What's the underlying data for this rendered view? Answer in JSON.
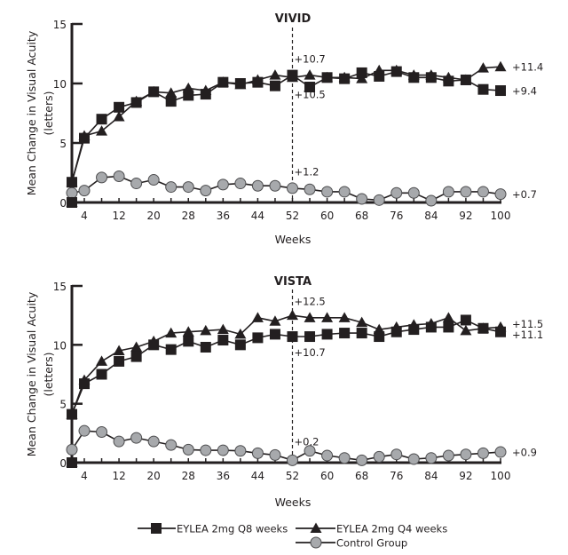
{
  "chart_data": [
    {
      "type": "line",
      "title": "VIVID",
      "xlabel": "Weeks",
      "ylabel": "Mean Change in Visual Acuity",
      "ylabel_sub": "(letters)",
      "ylim": [
        0,
        15
      ],
      "yticks": [
        0,
        5,
        10,
        15
      ],
      "xlim": [
        1,
        100
      ],
      "xticks": [
        4,
        12,
        20,
        28,
        36,
        44,
        52,
        60,
        68,
        76,
        84,
        92,
        100
      ],
      "grid": false,
      "reference_line": {
        "x": 52,
        "style": "dashed"
      },
      "annotations": [
        {
          "text": "+10.7",
          "x": 52,
          "y": 12.1
        },
        {
          "text": "+10.5",
          "x": 52,
          "y": 9.1
        },
        {
          "text": "+1.2",
          "x": 52,
          "y": 2.6
        },
        {
          "text": "+11.4",
          "x": 100,
          "y": 11.4,
          "side": "right"
        },
        {
          "text": "+9.4",
          "x": 100,
          "y": 9.4,
          "side": "right"
        },
        {
          "text": "+0.7",
          "x": 100,
          "y": 0.7,
          "side": "right"
        }
      ],
      "series": [
        {
          "name": "EYLEA 2mg Q8 weeks",
          "marker": "square",
          "x": [
            0,
            1,
            4,
            8,
            12,
            16,
            20,
            24,
            28,
            32,
            36,
            40,
            44,
            48,
            52,
            56,
            60,
            64,
            68,
            72,
            76,
            80,
            84,
            88,
            92,
            96,
            100
          ],
          "y": [
            0,
            1.7,
            5.4,
            7.0,
            8.0,
            8.4,
            9.3,
            8.5,
            9.0,
            9.1,
            10.1,
            10.0,
            10.1,
            9.8,
            10.7,
            9.7,
            10.5,
            10.4,
            10.9,
            10.6,
            11.0,
            10.5,
            10.5,
            10.2,
            10.3,
            9.5,
            9.4
          ]
        },
        {
          "name": "EYLEA 2mg Q4 weeks",
          "marker": "triangle",
          "x": [
            0,
            1,
            4,
            8,
            12,
            16,
            20,
            24,
            28,
            32,
            36,
            40,
            44,
            48,
            52,
            56,
            60,
            64,
            68,
            72,
            76,
            80,
            84,
            88,
            92,
            96,
            100
          ],
          "y": [
            0,
            1.7,
            5.6,
            6.0,
            7.2,
            8.5,
            9.3,
            9.2,
            9.6,
            9.4,
            10.1,
            9.9,
            10.3,
            10.7,
            10.5,
            10.7,
            10.5,
            10.5,
            10.4,
            11.1,
            11.1,
            10.7,
            10.7,
            10.5,
            10.3,
            11.3,
            11.4
          ]
        },
        {
          "name": "Control Group",
          "marker": "circle",
          "x": [
            1,
            4,
            8,
            12,
            16,
            20,
            24,
            28,
            32,
            36,
            40,
            44,
            48,
            52,
            56,
            60,
            64,
            68,
            72,
            76,
            80,
            84,
            88,
            92,
            96,
            100
          ],
          "y": [
            0.8,
            1.0,
            2.1,
            2.2,
            1.6,
            1.9,
            1.3,
            1.3,
            1.0,
            1.5,
            1.6,
            1.4,
            1.4,
            1.2,
            1.1,
            0.9,
            0.9,
            0.3,
            0.2,
            0.8,
            0.8,
            0.15,
            0.9,
            0.9,
            0.9,
            0.7
          ]
        }
      ]
    },
    {
      "type": "line",
      "title": "VISTA",
      "xlabel": "Weeks",
      "ylabel": "Mean Change in Visual Acuity",
      "ylabel_sub": "(letters)",
      "ylim": [
        0,
        15
      ],
      "yticks": [
        0,
        5,
        10,
        15
      ],
      "xlim": [
        1,
        100
      ],
      "xticks": [
        4,
        12,
        20,
        28,
        36,
        44,
        52,
        60,
        68,
        76,
        84,
        92,
        100
      ],
      "grid": false,
      "reference_line": {
        "x": 52,
        "style": "dashed"
      },
      "annotations": [
        {
          "text": "+12.5",
          "x": 52,
          "y": 13.7
        },
        {
          "text": "+10.7",
          "x": 52,
          "y": 9.4
        },
        {
          "text": "+0.2",
          "x": 52,
          "y": 1.8
        },
        {
          "text": "+11.5",
          "x": 100,
          "y": 11.8,
          "side": "right"
        },
        {
          "text": "+11.1",
          "x": 100,
          "y": 10.9,
          "side": "right"
        },
        {
          "text": "+0.9",
          "x": 100,
          "y": 0.9,
          "side": "right"
        }
      ],
      "series": [
        {
          "name": "EYLEA 2mg Q8 weeks",
          "marker": "square",
          "x": [
            0,
            1,
            4,
            8,
            12,
            16,
            20,
            24,
            28,
            32,
            36,
            40,
            44,
            48,
            52,
            56,
            60,
            64,
            68,
            72,
            76,
            80,
            84,
            88,
            92,
            96,
            100
          ],
          "y": [
            0,
            4.1,
            6.7,
            7.5,
            8.6,
            9.0,
            10.0,
            9.6,
            10.3,
            9.8,
            10.4,
            10.0,
            10.6,
            10.9,
            10.7,
            10.7,
            10.9,
            11.0,
            11.0,
            10.7,
            11.1,
            11.3,
            11.5,
            11.5,
            12.1,
            11.4,
            11.1
          ]
        },
        {
          "name": "EYLEA 2mg Q4 weeks",
          "marker": "triangle",
          "x": [
            0,
            1,
            4,
            8,
            12,
            16,
            20,
            24,
            28,
            32,
            36,
            40,
            44,
            48,
            52,
            56,
            60,
            64,
            68,
            72,
            76,
            80,
            84,
            88,
            92,
            96,
            100
          ],
          "y": [
            0,
            4.1,
            7.0,
            8.6,
            9.5,
            9.8,
            10.3,
            11.0,
            11.1,
            11.2,
            11.3,
            10.9,
            12.3,
            12.0,
            12.5,
            12.3,
            12.3,
            12.3,
            11.9,
            11.3,
            11.5,
            11.7,
            11.8,
            12.3,
            11.2,
            11.4,
            11.5
          ]
        },
        {
          "name": "Control Group",
          "marker": "circle",
          "x": [
            1,
            4,
            8,
            12,
            16,
            20,
            24,
            28,
            32,
            36,
            40,
            44,
            48,
            52,
            56,
            60,
            64,
            68,
            72,
            76,
            80,
            84,
            88,
            92,
            96,
            100
          ],
          "y": [
            1.1,
            2.7,
            2.6,
            1.8,
            2.1,
            1.8,
            1.5,
            1.1,
            1.05,
            1.05,
            1.0,
            0.8,
            0.65,
            0.2,
            1.0,
            0.6,
            0.4,
            0.2,
            0.5,
            0.7,
            0.3,
            0.4,
            0.6,
            0.7,
            0.8,
            0.9
          ]
        }
      ]
    }
  ],
  "legend": {
    "placement": "bottom-center",
    "items": [
      {
        "label": "EYLEA 2mg Q8 weeks",
        "marker": "square"
      },
      {
        "label": "EYLEA 2mg Q4 weeks",
        "marker": "triangle"
      },
      {
        "label": "Control Group",
        "marker": "circle"
      }
    ]
  },
  "colors": {
    "ink": "#231f20",
    "control_fill": "#a7a9ac",
    "control_stroke": "#4d4d4f"
  }
}
